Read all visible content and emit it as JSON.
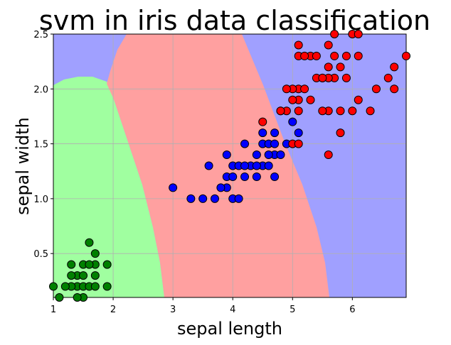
{
  "chart_data": {
    "type": "scatter",
    "title": "svm in iris data classification",
    "x_label": "sepal length",
    "y_label": "sepal width",
    "xlim": [
      1,
      6.9
    ],
    "ylim": [
      0.1,
      2.5
    ],
    "xticks": [
      1,
      2,
      3,
      4,
      5,
      6
    ],
    "yticks": [
      0.5,
      {
        "value": 1,
        "label": "1.0"
      },
      1.5,
      {
        "value": 2,
        "label": "2.0"
      },
      2.5
    ],
    "grid": true,
    "series": [
      {
        "color": "#008000",
        "x": [
          1.4,
          1.3,
          1.5,
          1.7,
          1.4,
          1.5,
          1.6,
          1.4,
          1.1,
          1.2,
          1.5,
          1.3,
          1.7,
          1.5,
          1.0,
          1.7,
          1.9,
          1.6,
          1.3,
          1.7,
          1.9,
          1.6
        ],
        "y": [
          0.2,
          0.2,
          0.2,
          0.4,
          0.3,
          0.1,
          0.2,
          0.1,
          0.1,
          0.2,
          0.4,
          0.4,
          0.3,
          0.3,
          0.2,
          0.2,
          0.2,
          0.4,
          0.3,
          0.5,
          0.4,
          0.6
        ]
      },
      {
        "color": "#0000ff",
        "x": [
          4.7,
          4.5,
          4.9,
          4.0,
          4.6,
          4.5,
          4.7,
          3.3,
          4.6,
          3.9,
          3.5,
          4.2,
          4.0,
          3.6,
          4.4,
          4.1,
          3.9,
          4.8,
          4.7,
          4.3,
          4.8,
          5.0,
          3.8,
          3.7,
          3.9,
          5.1,
          4.5,
          4.7,
          4.4,
          4.1,
          4.4,
          4.6,
          4.0,
          4.2,
          4.2,
          3.0
        ],
        "y": [
          1.4,
          1.5,
          1.5,
          1.3,
          1.5,
          1.3,
          1.6,
          1.0,
          1.3,
          1.4,
          1.0,
          1.5,
          1.0,
          1.3,
          1.4,
          1.0,
          1.1,
          1.8,
          1.2,
          1.3,
          1.4,
          1.7,
          1.1,
          1.0,
          1.2,
          1.6,
          1.6,
          1.5,
          1.3,
          1.3,
          1.2,
          1.4,
          1.2,
          1.3,
          1.2,
          1.1
        ]
      },
      {
        "color": "#ff0000",
        "x": [
          6.0,
          5.1,
          5.9,
          5.6,
          5.8,
          6.6,
          4.5,
          6.3,
          5.8,
          6.1,
          5.1,
          5.3,
          5.5,
          5.0,
          5.1,
          5.3,
          5.5,
          6.7,
          6.9,
          5.0,
          5.7,
          4.9,
          6.7,
          4.9,
          5.7,
          6.0,
          4.8,
          5.8,
          6.1,
          6.4,
          5.6,
          5.1,
          5.6,
          6.1,
          5.6,
          5.4,
          5.1,
          5.9,
          5.7,
          5.2,
          5.0,
          5.2,
          5.4,
          5.1,
          5.6,
          5.5
        ],
        "y": [
          2.5,
          1.9,
          2.1,
          1.8,
          2.2,
          2.1,
          1.7,
          1.8,
          1.8,
          2.5,
          2.0,
          1.9,
          2.1,
          2.0,
          2.4,
          2.3,
          1.8,
          2.2,
          2.3,
          1.5,
          2.3,
          2.0,
          2.0,
          1.8,
          2.1,
          1.8,
          1.8,
          1.6,
          1.9,
          2.0,
          2.2,
          1.5,
          1.4,
          2.3,
          2.4,
          2.1,
          2.3,
          2.3,
          2.5,
          2.3,
          1.9,
          2.0,
          2.3,
          1.8,
          2.1,
          2.1
        ]
      }
    ]
  }
}
